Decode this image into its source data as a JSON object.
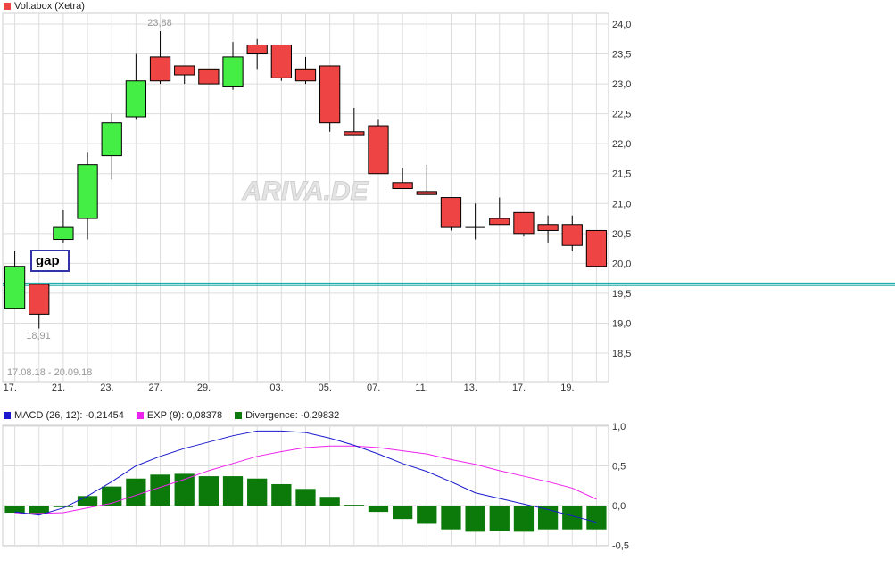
{
  "title": "Voltabox (Xetra)",
  "date_range": "17.08.18 - 20.09.18",
  "high_label": "23,88",
  "low_label": "18,91",
  "annotation": "gap",
  "watermark": "ARIVA.DE",
  "colors": {
    "up": "#44ee44",
    "down": "#ee4444",
    "title_swatch": "#ee4444",
    "macd": "#1a1acc",
    "exp": "#ee22ee",
    "divergence": "#0b7a0b",
    "hline": "#22aaaa",
    "grid": "#dddddd"
  },
  "indicator": {
    "macd_label": "MACD (26, 12): -0,21454",
    "exp_label": "EXP (9): 0,08378",
    "div_label": "Divergence: -0,29832"
  },
  "chart_data": [
    {
      "type": "candlestick",
      "title": "Voltabox (Xetra)",
      "ylim": [
        18.2,
        24.1
      ],
      "yticks": [
        "18,5",
        "19,0",
        "19,5",
        "20,0",
        "20,5",
        "21,0",
        "21,5",
        "22,0",
        "22,5",
        "23,0",
        "23,5",
        "24,0"
      ],
      "ytick_values": [
        18.5,
        19.0,
        19.5,
        20.0,
        20.5,
        21.0,
        21.5,
        22.0,
        22.5,
        23.0,
        23.5,
        24.0
      ],
      "xticks": [
        "17.",
        "21.",
        "23.",
        "27.",
        "29.",
        "03.",
        "05.",
        "07.",
        "11.",
        "13.",
        "17.",
        "19."
      ],
      "xtick_index": [
        0,
        2,
        4,
        6,
        8,
        11,
        13,
        15,
        17,
        19,
        21,
        23
      ],
      "horizontal_lines": [
        19.63,
        19.67
      ],
      "grid": true,
      "candles": [
        {
          "open": 19.25,
          "high": 20.2,
          "low": 19.25,
          "close": 19.95
        },
        {
          "open": 19.65,
          "high": 19.65,
          "low": 18.91,
          "close": 19.15
        },
        {
          "open": 20.4,
          "high": 20.9,
          "low": 20.35,
          "close": 20.6
        },
        {
          "open": 20.75,
          "high": 21.85,
          "low": 20.4,
          "close": 21.65
        },
        {
          "open": 21.8,
          "high": 22.5,
          "low": 21.4,
          "close": 22.35
        },
        {
          "open": 22.45,
          "high": 23.5,
          "low": 22.4,
          "close": 23.05
        },
        {
          "open": 23.45,
          "high": 23.88,
          "low": 23.0,
          "close": 23.05
        },
        {
          "open": 23.3,
          "high": 23.3,
          "low": 23.0,
          "close": 23.15
        },
        {
          "open": 23.25,
          "high": 23.25,
          "low": 23.0,
          "close": 23.0
        },
        {
          "open": 22.95,
          "high": 23.7,
          "low": 22.9,
          "close": 23.45
        },
        {
          "open": 23.65,
          "high": 23.75,
          "low": 23.25,
          "close": 23.5
        },
        {
          "open": 23.65,
          "high": 23.65,
          "low": 23.05,
          "close": 23.1
        },
        {
          "open": 23.25,
          "high": 23.45,
          "low": 23.0,
          "close": 23.05
        },
        {
          "open": 23.3,
          "high": 23.3,
          "low": 22.2,
          "close": 22.35
        },
        {
          "open": 22.2,
          "high": 22.6,
          "low": 22.15,
          "close": 22.15
        },
        {
          "open": 22.3,
          "high": 22.4,
          "low": 21.5,
          "close": 21.5
        },
        {
          "open": 21.35,
          "high": 21.6,
          "low": 21.25,
          "close": 21.25
        },
        {
          "open": 21.2,
          "high": 21.65,
          "low": 21.15,
          "close": 21.15
        },
        {
          "open": 21.1,
          "high": 21.1,
          "low": 20.55,
          "close": 20.6
        },
        {
          "open": 20.6,
          "high": 21.0,
          "low": 20.4,
          "close": 20.6
        },
        {
          "open": 20.75,
          "high": 21.1,
          "low": 20.65,
          "close": 20.65
        },
        {
          "open": 20.85,
          "high": 20.85,
          "low": 20.45,
          "close": 20.5
        },
        {
          "open": 20.65,
          "high": 20.8,
          "low": 20.35,
          "close": 20.55
        },
        {
          "open": 20.65,
          "high": 20.8,
          "low": 20.2,
          "close": 20.3
        },
        {
          "open": 20.55,
          "high": 20.55,
          "low": 19.95,
          "close": 19.95
        }
      ]
    },
    {
      "type": "bar",
      "ylim": [
        -0.55,
        1.0
      ],
      "yticks": [
        "1,0",
        "0,5",
        "0,0",
        "-0,5"
      ],
      "ytick_values": [
        1.0,
        0.5,
        0.0,
        -0.5
      ],
      "grid": true,
      "series": [
        {
          "name": "MACD (26, 12): -0,21454",
          "type": "line",
          "values": [
            -0.08,
            -0.12,
            -0.03,
            0.12,
            0.3,
            0.5,
            0.62,
            0.72,
            0.8,
            0.88,
            0.94,
            0.94,
            0.92,
            0.85,
            0.76,
            0.65,
            0.53,
            0.43,
            0.3,
            0.16,
            0.09,
            0.02,
            -0.05,
            -0.13,
            -0.21
          ]
        },
        {
          "name": "EXP (9): 0,08378",
          "type": "line",
          "values": [
            -0.1,
            -0.1,
            -0.09,
            -0.03,
            0.03,
            0.13,
            0.23,
            0.33,
            0.44,
            0.53,
            0.62,
            0.68,
            0.73,
            0.75,
            0.75,
            0.73,
            0.69,
            0.65,
            0.58,
            0.52,
            0.44,
            0.37,
            0.3,
            0.22,
            0.08
          ]
        },
        {
          "name": "Divergence: -0,29832",
          "type": "bar",
          "values": [
            -0.09,
            -0.1,
            -0.02,
            0.12,
            0.24,
            0.34,
            0.39,
            0.4,
            0.37,
            0.37,
            0.34,
            0.27,
            0.21,
            0.11,
            0.01,
            -0.08,
            -0.17,
            -0.23,
            -0.3,
            -0.33,
            -0.32,
            -0.33,
            -0.3,
            -0.3,
            -0.3
          ]
        }
      ]
    }
  ]
}
